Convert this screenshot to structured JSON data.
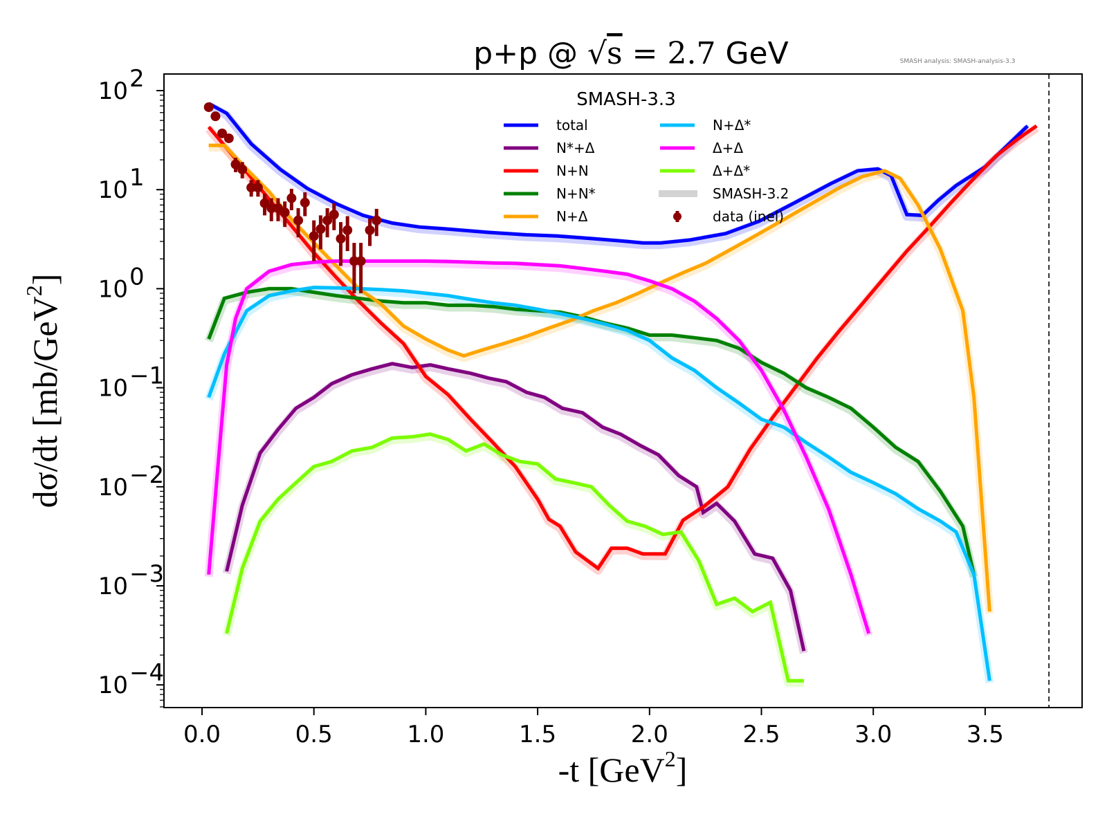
{
  "chart_data": {
    "type": "line",
    "title_parts": {
      "left": "p+p @ ",
      "sqrt": "s",
      "eq": " = 2.7",
      "unit": " GeV"
    },
    "title": "p+p @ √s = 2.7 GeV",
    "watermark": "SMASH analysis: SMASH-analysis-3.3",
    "xlabel": "-t [GeV²]",
    "xlabel_parts": {
      "main": "-t [GeV",
      "sup": "2",
      "end": "]"
    },
    "ylabel": "dσ/dt [mb/GeV²]",
    "ylabel_parts": {
      "main": "dσ/dt [mb/GeV",
      "sup": "2",
      "end": "]"
    },
    "xscale": "linear",
    "yscale": "log",
    "xlim": [
      -0.14,
      3.97
    ],
    "ylim": [
      6e-05,
      150
    ],
    "xticks": [
      0.0,
      0.5,
      1.0,
      1.5,
      2.0,
      2.5,
      3.0,
      3.5
    ],
    "xtick_labels": [
      "0.0",
      "0.5",
      "1.0",
      "1.5",
      "2.0",
      "2.5",
      "3.0",
      "3.5"
    ],
    "yticks": [
      100,
      10,
      1,
      0.1,
      0.01,
      0.001,
      0.0001
    ],
    "ytick_labels": [
      {
        "base": "10",
        "exp": "2"
      },
      {
        "base": "10",
        "exp": "1"
      },
      {
        "base": "10",
        "exp": "0"
      },
      {
        "base": "10",
        "exp": "−1"
      },
      {
        "base": "10",
        "exp": "−2"
      },
      {
        "base": "10",
        "exp": "−3"
      },
      {
        "base": "10",
        "exp": "−4"
      }
    ],
    "vline": {
      "x": 3.785,
      "style": "dashed",
      "color": "#000000"
    },
    "legend": {
      "title": "SMASH-3.3",
      "placement": "top-center",
      "entries": [
        {
          "label": "total",
          "color": "#0000ff",
          "kind": "line"
        },
        {
          "label": "N*+Δ",
          "color": "#800080",
          "kind": "line"
        },
        {
          "label": "N+N",
          "color": "#ff0000",
          "kind": "line"
        },
        {
          "label": "N+N*",
          "color": "#008000",
          "kind": "line"
        },
        {
          "label": "N+Δ",
          "color": "#ffa500",
          "kind": "line"
        },
        {
          "label": "N+Δ*",
          "color": "#00bfff",
          "kind": "line"
        },
        {
          "label": "Δ+Δ",
          "color": "#ff00ff",
          "kind": "line"
        },
        {
          "label": "Δ+Δ*",
          "color": "#7cfc00",
          "kind": "line"
        },
        {
          "label": "SMASH-3.2",
          "color": "#d3d3d3",
          "kind": "band"
        },
        {
          "label": "data (inel)",
          "color": "#8b0000",
          "kind": "errorbar"
        }
      ]
    },
    "series": [
      {
        "name": "total",
        "color": "#0000ff",
        "x": [
          0.03,
          0.11,
          0.22,
          0.35,
          0.47,
          0.6,
          0.72,
          0.85,
          0.97,
          1.1,
          1.28,
          1.45,
          1.59,
          1.75,
          1.9,
          1.97,
          2.05,
          2.18,
          2.34,
          2.49,
          2.65,
          2.81,
          2.93,
          3.02,
          3.08,
          3.15,
          3.22,
          3.29,
          3.37,
          3.5,
          3.69
        ],
        "y": [
          74,
          59,
          29,
          16,
          10.3,
          7.2,
          5.5,
          4.6,
          4.2,
          4.0,
          3.7,
          3.5,
          3.4,
          3.2,
          3.0,
          2.9,
          2.9,
          3.1,
          3.6,
          4.8,
          7.4,
          11.5,
          15.5,
          16.2,
          13.8,
          5.6,
          5.5,
          7.8,
          11,
          17,
          44
        ]
      },
      {
        "name": "N*+Δ",
        "color": "#800080",
        "x": [
          0.11,
          0.18,
          0.26,
          0.34,
          0.42,
          0.5,
          0.58,
          0.67,
          0.76,
          0.85,
          0.94,
          1.02,
          1.1,
          1.2,
          1.28,
          1.36,
          1.45,
          1.53,
          1.61,
          1.7,
          1.79,
          1.87,
          1.96,
          2.04,
          2.13,
          2.21,
          2.24,
          2.3,
          2.38,
          2.47,
          2.55,
          2.63,
          2.69
        ],
        "y": [
          0.0014,
          0.0065,
          0.022,
          0.038,
          0.062,
          0.08,
          0.11,
          0.135,
          0.155,
          0.175,
          0.16,
          0.17,
          0.155,
          0.14,
          0.125,
          0.115,
          0.09,
          0.08,
          0.062,
          0.056,
          0.04,
          0.034,
          0.026,
          0.021,
          0.013,
          0.01,
          0.0055,
          0.0068,
          0.0045,
          0.0021,
          0.0019,
          0.0009,
          0.00022
        ]
      },
      {
        "name": "N+N",
        "color": "#ff0000",
        "x": [
          0.03,
          0.1,
          0.2,
          0.3,
          0.4,
          0.5,
          0.6,
          0.7,
          0.8,
          0.9,
          1.0,
          1.1,
          1.2,
          1.3,
          1.4,
          1.5,
          1.55,
          1.6,
          1.67,
          1.77,
          1.83,
          1.9,
          1.97,
          2.07,
          2.15,
          2.25,
          2.35,
          2.45,
          2.55,
          2.65,
          2.75,
          2.85,
          2.95,
          3.05,
          3.15,
          3.25,
          3.35,
          3.45,
          3.55,
          3.65,
          3.73
        ],
        "y": [
          43,
          28,
          15,
          8,
          4.3,
          2.3,
          1.3,
          0.75,
          0.45,
          0.28,
          0.13,
          0.085,
          0.048,
          0.028,
          0.016,
          0.0075,
          0.0047,
          0.004,
          0.0022,
          0.0015,
          0.0024,
          0.0024,
          0.0021,
          0.0021,
          0.0046,
          0.0065,
          0.01,
          0.024,
          0.05,
          0.1,
          0.2,
          0.38,
          0.7,
          1.3,
          2.4,
          4.2,
          7.5,
          13,
          22,
          33,
          44
        ]
      },
      {
        "name": "N+N*",
        "color": "#008000",
        "x": [
          0.03,
          0.1,
          0.2,
          0.3,
          0.4,
          0.5,
          0.6,
          0.7,
          0.8,
          0.9,
          1.0,
          1.1,
          1.2,
          1.3,
          1.4,
          1.5,
          1.6,
          1.7,
          1.8,
          1.9,
          2.0,
          2.1,
          2.2,
          2.3,
          2.4,
          2.5,
          2.6,
          2.7,
          2.8,
          2.9,
          3.0,
          3.1,
          3.2,
          3.3,
          3.4,
          3.45
        ],
        "y": [
          0.31,
          0.8,
          0.92,
          1.0,
          1.0,
          0.92,
          0.85,
          0.8,
          0.75,
          0.72,
          0.72,
          0.68,
          0.68,
          0.66,
          0.62,
          0.6,
          0.58,
          0.52,
          0.45,
          0.4,
          0.34,
          0.34,
          0.32,
          0.3,
          0.25,
          0.18,
          0.14,
          0.1,
          0.08,
          0.062,
          0.04,
          0.025,
          0.018,
          0.009,
          0.004,
          0.0013
        ]
      },
      {
        "name": "N+Δ",
        "color": "#ffa500",
        "x": [
          0.03,
          0.1,
          0.2,
          0.3,
          0.4,
          0.5,
          0.6,
          0.7,
          0.8,
          0.9,
          1.0,
          1.1,
          1.17,
          1.25,
          1.35,
          1.45,
          1.55,
          1.65,
          1.75,
          1.85,
          1.95,
          2.05,
          2.15,
          2.25,
          2.35,
          2.45,
          2.55,
          2.65,
          2.75,
          2.85,
          2.95,
          3.05,
          3.12,
          3.2,
          3.3,
          3.4,
          3.45,
          3.52
        ],
        "y": [
          28,
          28,
          16,
          9.5,
          5,
          2.9,
          1.7,
          1.0,
          0.7,
          0.42,
          0.31,
          0.24,
          0.21,
          0.24,
          0.28,
          0.33,
          0.4,
          0.48,
          0.6,
          0.72,
          0.9,
          1.15,
          1.45,
          1.8,
          2.4,
          3.2,
          4.3,
          5.8,
          7.8,
          10.5,
          13.5,
          15.5,
          13,
          7,
          2.5,
          0.6,
          0.08,
          0.00055
        ]
      },
      {
        "name": "N+Δ*",
        "color": "#00bfff",
        "x": [
          0.03,
          0.1,
          0.2,
          0.3,
          0.4,
          0.5,
          0.6,
          0.7,
          0.8,
          0.9,
          1.0,
          1.1,
          1.2,
          1.3,
          1.4,
          1.5,
          1.6,
          1.7,
          1.8,
          1.9,
          2.0,
          2.1,
          2.2,
          2.3,
          2.4,
          2.5,
          2.6,
          2.7,
          2.8,
          2.9,
          3.0,
          3.1,
          3.2,
          3.3,
          3.37,
          3.45,
          3.52
        ],
        "y": [
          0.08,
          0.22,
          0.6,
          0.85,
          0.95,
          1.03,
          1.02,
          1.0,
          0.98,
          0.95,
          0.9,
          0.85,
          0.78,
          0.72,
          0.68,
          0.62,
          0.56,
          0.5,
          0.44,
          0.38,
          0.3,
          0.2,
          0.15,
          0.1,
          0.07,
          0.048,
          0.04,
          0.028,
          0.02,
          0.014,
          0.011,
          0.0085,
          0.006,
          0.0045,
          0.0035,
          0.0013,
          0.00011
        ]
      },
      {
        "name": "Δ+Δ",
        "color": "#ff00ff",
        "x": [
          0.03,
          0.07,
          0.11,
          0.15,
          0.2,
          0.3,
          0.4,
          0.5,
          0.6,
          0.7,
          0.8,
          0.9,
          1.0,
          1.1,
          1.2,
          1.3,
          1.4,
          1.5,
          1.6,
          1.7,
          1.8,
          1.9,
          2.0,
          2.1,
          2.2,
          2.3,
          2.4,
          2.5,
          2.6,
          2.7,
          2.8,
          2.9,
          2.98
        ],
        "y": [
          0.0013,
          0.015,
          0.17,
          0.5,
          1.0,
          1.5,
          1.75,
          1.85,
          1.9,
          1.9,
          1.9,
          1.9,
          1.9,
          1.88,
          1.85,
          1.82,
          1.8,
          1.75,
          1.7,
          1.6,
          1.5,
          1.4,
          1.2,
          1.0,
          0.75,
          0.5,
          0.3,
          0.15,
          0.06,
          0.02,
          0.006,
          0.0013,
          0.00033
        ]
      },
      {
        "name": "Δ+Δ*",
        "color": "#7cfc00",
        "x": [
          0.11,
          0.18,
          0.26,
          0.34,
          0.42,
          0.5,
          0.58,
          0.67,
          0.76,
          0.85,
          0.94,
          1.02,
          1.1,
          1.18,
          1.26,
          1.34,
          1.42,
          1.5,
          1.58,
          1.66,
          1.74,
          1.82,
          1.9,
          1.98,
          2.06,
          2.14,
          2.22,
          2.3,
          2.38,
          2.46,
          2.54,
          2.62,
          2.69
        ],
        "y": [
          0.00033,
          0.0015,
          0.0045,
          0.0075,
          0.011,
          0.016,
          0.018,
          0.023,
          0.025,
          0.031,
          0.032,
          0.034,
          0.03,
          0.023,
          0.027,
          0.021,
          0.018,
          0.017,
          0.012,
          0.011,
          0.01,
          0.0065,
          0.0045,
          0.004,
          0.0033,
          0.0035,
          0.0018,
          0.00065,
          0.00075,
          0.00055,
          0.00068,
          0.00011,
          0.00011
        ]
      }
    ],
    "reference_band": {
      "name": "SMASH-3.2",
      "alpha": 0.18,
      "note": "faded duplicate of each series (SMASH-3.2 comparison)"
    },
    "data_points": {
      "name": "data (inel)",
      "color": "#8b0000",
      "points": [
        {
          "x": 0.03,
          "y": 68,
          "err": 0
        },
        {
          "x": 0.06,
          "y": 55,
          "err": 0
        },
        {
          "x": 0.09,
          "y": 37,
          "err": 0
        },
        {
          "x": 0.12,
          "y": 33,
          "err": 0
        },
        {
          "x": 0.15,
          "y": 18,
          "err": 3
        },
        {
          "x": 0.18,
          "y": 16,
          "err": 3
        },
        {
          "x": 0.22,
          "y": 10.5,
          "err": 2
        },
        {
          "x": 0.25,
          "y": 10.5,
          "err": 2
        },
        {
          "x": 0.28,
          "y": 7.3,
          "err": 1.8
        },
        {
          "x": 0.31,
          "y": 6.5,
          "err": 1.7
        },
        {
          "x": 0.34,
          "y": 6.5,
          "err": 1.7
        },
        {
          "x": 0.37,
          "y": 5.9,
          "err": 1.7
        },
        {
          "x": 0.4,
          "y": 8.2,
          "err": 2
        },
        {
          "x": 0.43,
          "y": 4.9,
          "err": 1.6
        },
        {
          "x": 0.46,
          "y": 7.4,
          "err": 2
        },
        {
          "x": 0.5,
          "y": 3.4,
          "err": 1.5
        },
        {
          "x": 0.53,
          "y": 4.0,
          "err": 1.5
        },
        {
          "x": 0.56,
          "y": 4.9,
          "err": 1.6
        },
        {
          "x": 0.59,
          "y": 5.6,
          "err": 1.7
        },
        {
          "x": 0.62,
          "y": 3.2,
          "err": 1.5
        },
        {
          "x": 0.65,
          "y": 3.9,
          "err": 1.5
        },
        {
          "x": 0.68,
          "y": 1.9,
          "err": 1.0
        },
        {
          "x": 0.71,
          "y": 1.9,
          "err": 1.0
        },
        {
          "x": 0.75,
          "y": 3.9,
          "err": 1.2
        },
        {
          "x": 0.78,
          "y": 4.9,
          "err": 1.5
        }
      ]
    }
  }
}
